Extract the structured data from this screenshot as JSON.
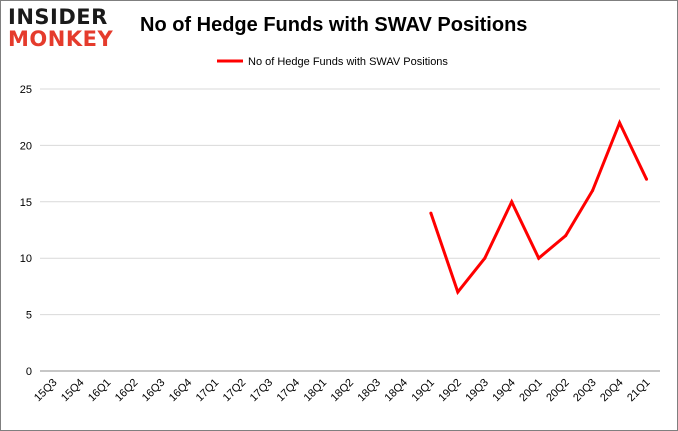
{
  "logo": {
    "line1": "INSIDER",
    "line2": "MONKEY"
  },
  "chart_data": {
    "type": "line",
    "title": "No of Hedge Funds with SWAV Positions",
    "xlabel": "",
    "ylabel": "",
    "categories": [
      "15Q3",
      "15Q4",
      "16Q1",
      "16Q2",
      "16Q3",
      "16Q4",
      "17Q1",
      "17Q2",
      "17Q3",
      "17Q4",
      "18Q1",
      "18Q2",
      "18Q3",
      "18Q4",
      "19Q1",
      "19Q2",
      "19Q3",
      "19Q4",
      "20Q1",
      "20Q2",
      "20Q3",
      "20Q4",
      "21Q1"
    ],
    "series": [
      {
        "name": "No of Hedge Funds with SWAV Positions",
        "color": "#ff0000",
        "values": [
          null,
          null,
          null,
          null,
          null,
          null,
          null,
          null,
          null,
          null,
          null,
          null,
          null,
          null,
          14,
          7,
          10,
          15,
          10,
          12,
          16,
          22,
          17
        ]
      }
    ],
    "ylim": [
      0,
      25
    ],
    "yticks": [
      0,
      5,
      10,
      15,
      20,
      25
    ],
    "grid": true,
    "legend": "top-center"
  }
}
